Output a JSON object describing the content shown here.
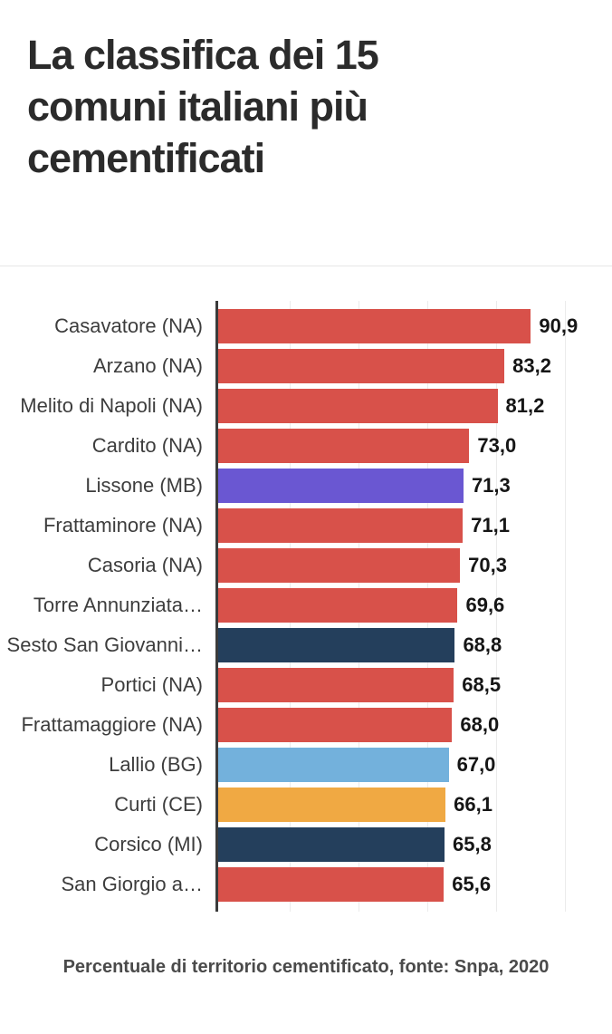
{
  "title": {
    "lines": [
      "La classifica dei 15",
      "comuni italiani più",
      "cementificati"
    ],
    "full": "La classifica dei 15 comuni italiani più cementificati"
  },
  "footer": "Percentuale di territorio cementificato, fonte: Snpa, 2020",
  "colors": {
    "red": "#d8514a",
    "purple": "#6a57d2",
    "navy": "#243f5c",
    "light_blue": "#73b1dc",
    "orange": "#f0a943",
    "axis": "#3b3b3b",
    "gridline": "#ebebeb",
    "title_text": "#2b2b2b",
    "label_text": "#3d3d3d",
    "value_text": "#161616"
  },
  "chart_data": {
    "type": "bar",
    "orientation": "horizontal",
    "title": "La classifica dei 15 comuni italiani più cementificati",
    "xlabel": "Percentuale di territorio cementificato",
    "source": "Snpa, 2020",
    "xlim": [
      0,
      100
    ],
    "grid": true,
    "gridlines_x": [
      20,
      40,
      60,
      80,
      100
    ],
    "legend": "none",
    "categories": [
      "Casavatore (NA)",
      "Arzano (NA)",
      "Melito di Napoli (NA)",
      "Cardito (NA)",
      "Lissone (MB)",
      "Frattaminore (NA)",
      "Casoria (NA)",
      "Torre Annunziata…",
      "Sesto San Giovanni…",
      "Portici (NA)",
      "Frattamaggiore (NA)",
      "Lallio (BG)",
      "Curti (CE)",
      "Corsico (MI)",
      "San Giorgio a…"
    ],
    "values": [
      90.9,
      83.2,
      81.2,
      73.0,
      71.3,
      71.1,
      70.3,
      69.6,
      68.8,
      68.5,
      68.0,
      67.0,
      66.1,
      65.8,
      65.6
    ],
    "value_labels": [
      "90,9",
      "83,2",
      "81,2",
      "73,0",
      "71,3",
      "71,1",
      "70,3",
      "69,6",
      "68,8",
      "68,5",
      "68,0",
      "67,0",
      "66,1",
      "65,8",
      "65,6"
    ],
    "bar_colors": [
      "#d8514a",
      "#d8514a",
      "#d8514a",
      "#d8514a",
      "#6a57d2",
      "#d8514a",
      "#d8514a",
      "#d8514a",
      "#243f5c",
      "#d8514a",
      "#d8514a",
      "#73b1dc",
      "#f0a943",
      "#243f5c",
      "#d8514a"
    ]
  }
}
